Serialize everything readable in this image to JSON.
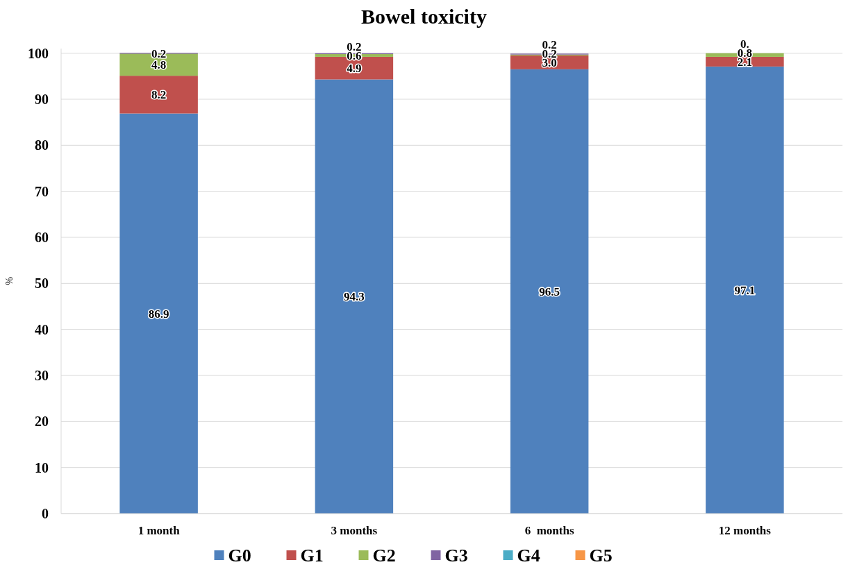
{
  "chart_data": {
    "type": "bar",
    "title": "Bowel toxicity",
    "ylabel": "%",
    "stacked": true,
    "categories": [
      "1 month",
      "3 months",
      "6  months",
      "12 months"
    ],
    "series": [
      {
        "name": "G0",
        "color": "#4f81bd",
        "values": [
          86.9,
          94.3,
          96.5,
          97.1
        ],
        "value_labels": [
          "86.9",
          "94.3",
          "96.5",
          "97.1"
        ]
      },
      {
        "name": "G1",
        "color": "#c0504d",
        "values": [
          8.2,
          4.9,
          3.0,
          2.1
        ],
        "value_labels": [
          "8.2",
          "4.9",
          "3.0",
          "2.1"
        ]
      },
      {
        "name": "G2",
        "color": "#9bbb59",
        "values": [
          4.8,
          0.6,
          0.2,
          0.8
        ],
        "value_labels": [
          "4.8",
          "0.6",
          "0.2",
          "0.8"
        ]
      },
      {
        "name": "G3",
        "color": "#8064a2",
        "values": [
          0.2,
          0.2,
          0.2,
          0
        ],
        "value_labels": [
          "0.2",
          "0.2",
          "0.2",
          "0."
        ]
      },
      {
        "name": "G4",
        "color": "#4bacc6",
        "values": [
          null,
          null,
          null,
          null
        ]
      },
      {
        "name": "G5",
        "color": "#f79646",
        "values": [
          null,
          null,
          null,
          null
        ]
      }
    ],
    "ylim": [
      0,
      101
    ],
    "yticks": [
      0,
      10,
      20,
      30,
      40,
      50,
      60,
      70,
      80,
      90,
      100
    ],
    "grid": "y",
    "legend": "bottom"
  }
}
